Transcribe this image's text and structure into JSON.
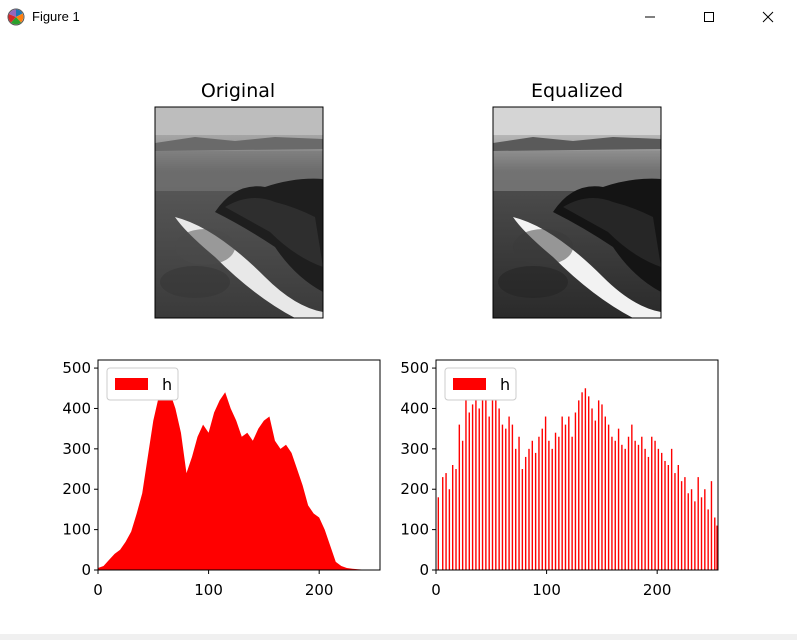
{
  "window": {
    "title": "Figure 1",
    "icon": "matplotlib-logo-icon",
    "controls": [
      "minimize-icon",
      "maximize-icon",
      "close-icon"
    ]
  },
  "images": {
    "original_title": "Original",
    "equalized_title": "Equalized",
    "description_note": "grayscale aerial photo of beach spit with trees and bay"
  },
  "colors": {
    "histogram_fill": "#ff0000",
    "axes": "#000000",
    "background": "#ffffff"
  },
  "chart_data": [
    {
      "type": "bar",
      "title": "",
      "xlabel": "",
      "ylabel": "",
      "xlim": [
        0,
        255
      ],
      "ylim": [
        0,
        520
      ],
      "xticks": [
        0,
        100,
        200
      ],
      "yticks": [
        0,
        100,
        200,
        300,
        400,
        500
      ],
      "legend": {
        "placement": "upper-left",
        "entries": [
          "h"
        ]
      },
      "series": [
        {
          "name": "h",
          "color": "#ff0000",
          "x": [
            0,
            5,
            10,
            15,
            20,
            25,
            30,
            35,
            40,
            45,
            50,
            55,
            60,
            65,
            70,
            75,
            80,
            85,
            90,
            95,
            100,
            105,
            110,
            115,
            120,
            125,
            130,
            135,
            140,
            145,
            150,
            155,
            160,
            165,
            170,
            175,
            180,
            185,
            190,
            195,
            200,
            205,
            210,
            215,
            220,
            225,
            230,
            235,
            240,
            245,
            250,
            255
          ],
          "values": [
            5,
            10,
            25,
            40,
            50,
            70,
            95,
            140,
            190,
            280,
            370,
            430,
            420,
            440,
            400,
            340,
            240,
            280,
            330,
            360,
            340,
            390,
            420,
            440,
            400,
            370,
            330,
            340,
            320,
            350,
            370,
            380,
            320,
            300,
            310,
            290,
            250,
            210,
            160,
            140,
            130,
            100,
            60,
            20,
            10,
            5,
            3,
            2,
            1,
            1,
            0,
            0
          ]
        }
      ]
    },
    {
      "type": "bar",
      "title": "",
      "xlabel": "",
      "ylabel": "",
      "xlim": [
        0,
        255
      ],
      "ylim": [
        0,
        520
      ],
      "xticks": [
        0,
        100,
        200
      ],
      "yticks": [
        0,
        100,
        200,
        300,
        400,
        500
      ],
      "legend": {
        "placement": "upper-left",
        "entries": [
          "h"
        ]
      },
      "series": [
        {
          "name": "h",
          "color": "#ff0000",
          "x": [
            2,
            6,
            9,
            12,
            15,
            18,
            21,
            24,
            27,
            30,
            33,
            36,
            39,
            42,
            45,
            48,
            51,
            54,
            57,
            60,
            63,
            66,
            69,
            72,
            75,
            78,
            81,
            84,
            87,
            90,
            93,
            96,
            99,
            102,
            105,
            108,
            111,
            114,
            117,
            120,
            123,
            126,
            129,
            132,
            135,
            138,
            141,
            144,
            147,
            150,
            153,
            156,
            159,
            162,
            165,
            168,
            171,
            174,
            177,
            180,
            183,
            186,
            189,
            192,
            195,
            198,
            201,
            204,
            207,
            210,
            213,
            216,
            219,
            222,
            225,
            228,
            231,
            234,
            237,
            240,
            243,
            246,
            249,
            252,
            254
          ],
          "values": [
            180,
            230,
            240,
            200,
            260,
            250,
            360,
            320,
            430,
            390,
            410,
            440,
            400,
            450,
            420,
            380,
            440,
            430,
            400,
            360,
            350,
            380,
            360,
            300,
            330,
            250,
            280,
            300,
            320,
            290,
            330,
            350,
            380,
            320,
            300,
            340,
            330,
            380,
            360,
            380,
            330,
            390,
            420,
            440,
            450,
            430,
            400,
            370,
            420,
            410,
            380,
            360,
            330,
            320,
            350,
            310,
            300,
            330,
            360,
            320,
            310,
            330,
            300,
            280,
            330,
            320,
            300,
            290,
            270,
            260,
            300,
            240,
            260,
            220,
            230,
            190,
            200,
            170,
            230,
            180,
            200,
            150,
            220,
            130,
            110
          ]
        }
      ]
    }
  ]
}
